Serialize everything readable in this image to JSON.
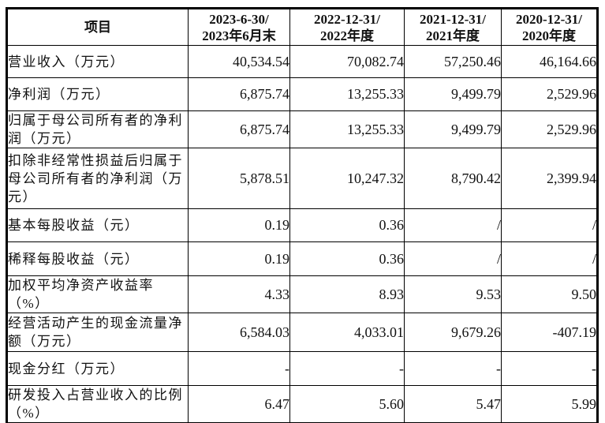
{
  "header": {
    "item_col": "项目",
    "period_cols": [
      {
        "line1": "2023-6-30/",
        "line2": "2023年6月末"
      },
      {
        "line1": "2022-12-31/",
        "line2": "2022年度"
      },
      {
        "line1": "2021-12-31/",
        "line2": "2021年度"
      },
      {
        "line1": "2020-12-31/",
        "line2": "2020年度"
      }
    ]
  },
  "rows": [
    {
      "label": "营业收入（万元）",
      "values": [
        "40,534.54",
        "70,082.74",
        "57,250.46",
        "46,164.66"
      ]
    },
    {
      "label": "净利润（万元）",
      "values": [
        "6,875.74",
        "13,255.33",
        "9,499.79",
        "2,529.96"
      ]
    },
    {
      "label": "归属于母公司所有者的净利润（万元）",
      "values": [
        "6,875.74",
        "13,255.33",
        "9,499.79",
        "2,529.96"
      ]
    },
    {
      "label": "扣除非经常性损益后归属于母公司所有者的净利润（万元）",
      "values": [
        "5,878.51",
        "10,247.32",
        "8,790.42",
        "2,399.94"
      ]
    },
    {
      "label": "基本每股收益（元）",
      "values": [
        "0.19",
        "0.36",
        "/",
        "/"
      ]
    },
    {
      "label": "稀释每股收益（元）",
      "values": [
        "0.19",
        "0.36",
        "/",
        "/"
      ]
    },
    {
      "label": "加权平均净资产收益率（%）",
      "values": [
        "4.33",
        "8.93",
        "9.53",
        "9.50"
      ]
    },
    {
      "label": "经营活动产生的现金流量净额（万元）",
      "values": [
        "6,584.03",
        "4,033.01",
        "9,679.26",
        "-407.19"
      ]
    },
    {
      "label": "现金分红（万元）",
      "values": [
        "-",
        "-",
        "-",
        "-"
      ]
    },
    {
      "label": "研发投入占营业收入的比例（%）",
      "values": [
        "6.47",
        "5.60",
        "5.47",
        "5.99"
      ]
    }
  ],
  "colors": {
    "border": "#000000",
    "text": "#111111",
    "background": "#ffffff"
  }
}
